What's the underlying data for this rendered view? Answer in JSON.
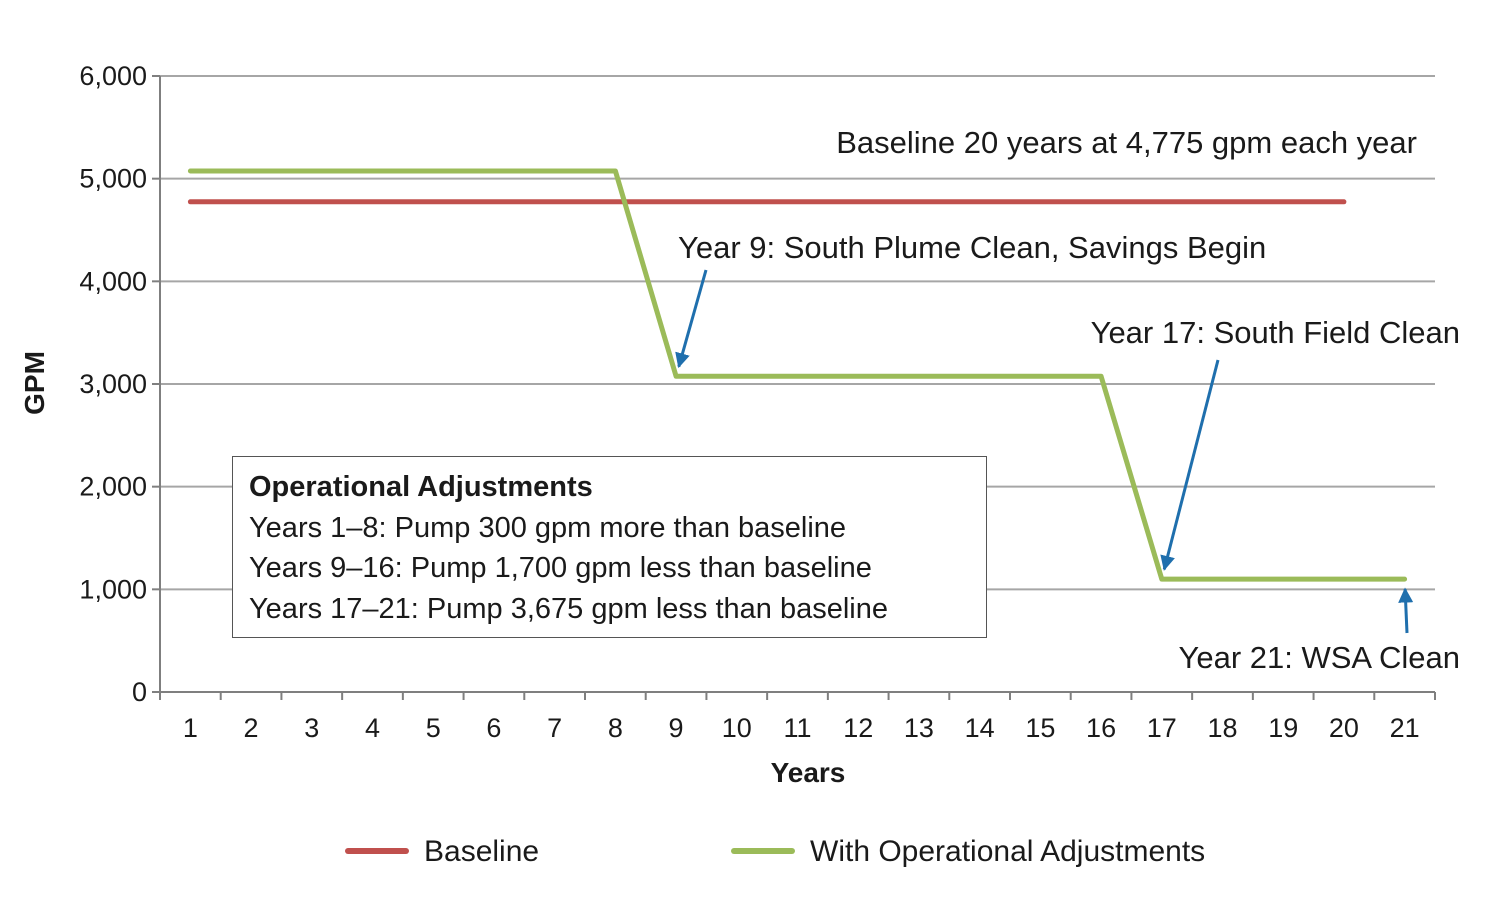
{
  "chart_data": {
    "type": "line",
    "xlabel": "Years",
    "ylabel": "GPM",
    "x": [
      "1",
      "2",
      "3",
      "4",
      "5",
      "6",
      "7",
      "8",
      "9",
      "10",
      "11",
      "12",
      "13",
      "14",
      "15",
      "16",
      "17",
      "18",
      "19",
      "20",
      "21"
    ],
    "ylim": [
      0,
      6000
    ],
    "yticks": [
      "0",
      "1,000",
      "2,000",
      "3,000",
      "4,000",
      "5,000",
      "6,000"
    ],
    "ytick_values": [
      0,
      1000,
      2000,
      3000,
      4000,
      5000,
      6000
    ],
    "grid": true,
    "legend_position": "bottom",
    "series": [
      {
        "name": "Baseline",
        "color": "#c0504d",
        "points": [
          [
            1,
            4775
          ],
          [
            20,
            4775
          ]
        ]
      },
      {
        "name": "With Operational Adjustments",
        "color": "#9bbb59",
        "points": [
          [
            1,
            5075
          ],
          [
            8,
            5075
          ],
          [
            9,
            3075
          ],
          [
            16,
            3075
          ],
          [
            17,
            1100
          ],
          [
            21,
            1100
          ]
        ]
      }
    ],
    "annotations": [
      {
        "text": "Baseline 20 years at 4,775 gpm each year"
      },
      {
        "text": "Year 9: South Plume Clean, Savings Begin",
        "arrow_to": [
          9,
          3075
        ]
      },
      {
        "text": "Year 17: South Field Clean",
        "arrow_to": [
          17,
          1100
        ]
      },
      {
        "text": "Year 21: WSA Clean",
        "arrow_to": [
          21,
          1100
        ]
      }
    ],
    "annotation_arrow_color": "#1f6fad",
    "textbox": {
      "title": "Operational Adjustments",
      "lines": [
        "Years 1–8: Pump 300 gpm more than baseline",
        "Years 9–16: Pump 1,700 gpm less than baseline",
        "Years 17–21: Pump 3,675 gpm less than baseline"
      ]
    }
  }
}
